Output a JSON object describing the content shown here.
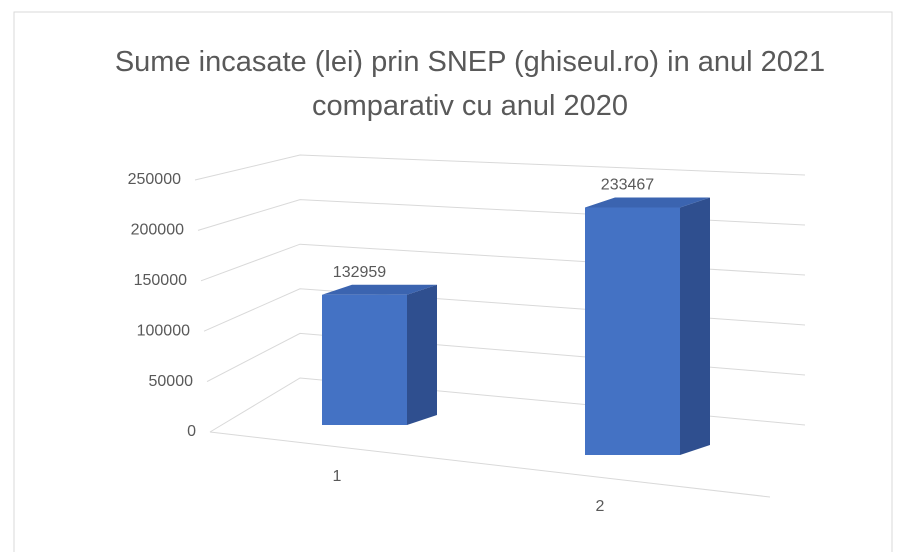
{
  "chart_data": {
    "type": "bar3d",
    "title": "Sume incasate (lei) prin SNEP (ghiseul.ro) in anul 2021 comparativ cu anul 2020",
    "categories": [
      "1",
      "2"
    ],
    "values": [
      132959,
      233467
    ],
    "color": "#4472c4",
    "ylim": [
      0,
      250000
    ],
    "yticks": [
      0,
      50000,
      100000,
      150000,
      200000,
      250000
    ],
    "grid": true
  }
}
